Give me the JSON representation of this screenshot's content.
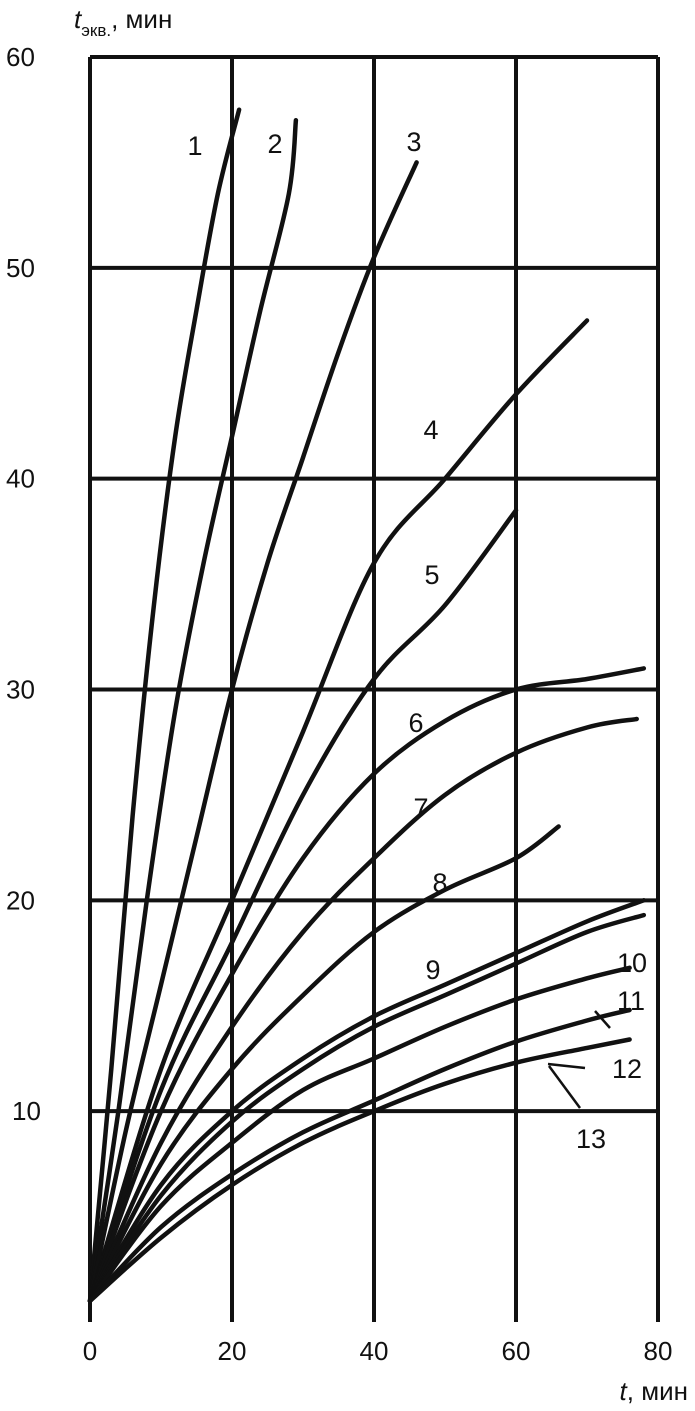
{
  "chart_data": {
    "type": "line",
    "title": "",
    "xlabel": {
      "symbol": "t",
      "unit": ", мин"
    },
    "ylabel": {
      "symbol": "t",
      "subscript": "экв.",
      "unit": ", мин"
    },
    "xlim": [
      0,
      80
    ],
    "ylim": [
      0,
      60
    ],
    "x_ticks": [
      "0",
      "20",
      "40",
      "60",
      "80"
    ],
    "y_ticks": [
      "60",
      "50",
      "40",
      "30",
      "20",
      "10"
    ],
    "grid": true,
    "series": [
      {
        "name": "1",
        "points": [
          [
            0,
            1
          ],
          [
            3,
            12
          ],
          [
            6,
            24
          ],
          [
            9,
            34
          ],
          [
            12,
            42
          ],
          [
            15,
            48
          ],
          [
            18,
            53.5
          ],
          [
            21,
            57.5
          ]
        ]
      },
      {
        "name": "2",
        "points": [
          [
            0,
            1
          ],
          [
            4,
            10
          ],
          [
            8,
            20
          ],
          [
            12,
            29
          ],
          [
            16,
            36
          ],
          [
            20,
            42
          ],
          [
            24,
            48
          ],
          [
            28,
            53.5
          ],
          [
            29,
            57
          ]
        ]
      },
      {
        "name": "3",
        "points": [
          [
            0,
            1
          ],
          [
            5,
            9
          ],
          [
            10,
            16
          ],
          [
            15,
            23
          ],
          [
            20,
            30
          ],
          [
            25,
            36
          ],
          [
            30,
            41
          ],
          [
            35,
            46
          ],
          [
            40,
            50.5
          ],
          [
            46,
            55
          ]
        ]
      },
      {
        "name": "4",
        "points": [
          [
            0,
            1
          ],
          [
            10,
            12
          ],
          [
            20,
            20
          ],
          [
            30,
            28
          ],
          [
            40,
            36
          ],
          [
            50,
            40
          ],
          [
            60,
            44
          ],
          [
            70,
            47.5
          ]
        ]
      },
      {
        "name": "5",
        "points": [
          [
            0,
            1
          ],
          [
            10,
            11
          ],
          [
            20,
            18
          ],
          [
            30,
            25
          ],
          [
            40,
            30.5
          ],
          [
            50,
            34
          ],
          [
            60,
            38.5
          ]
        ]
      },
      {
        "name": "6",
        "points": [
          [
            0,
            1
          ],
          [
            10,
            10
          ],
          [
            20,
            16.5
          ],
          [
            30,
            22
          ],
          [
            40,
            26
          ],
          [
            50,
            28.5
          ],
          [
            60,
            30
          ],
          [
            70,
            30.5
          ],
          [
            78,
            31
          ]
        ]
      },
      {
        "name": "7",
        "points": [
          [
            0,
            1
          ],
          [
            10,
            8.5
          ],
          [
            20,
            14
          ],
          [
            30,
            18.5
          ],
          [
            40,
            22
          ],
          [
            50,
            25
          ],
          [
            60,
            27
          ],
          [
            70,
            28.2
          ],
          [
            77,
            28.6
          ]
        ]
      },
      {
        "name": "8",
        "points": [
          [
            0,
            1
          ],
          [
            10,
            7.5
          ],
          [
            20,
            12
          ],
          [
            30,
            15.5
          ],
          [
            40,
            18.5
          ],
          [
            50,
            20.5
          ],
          [
            60,
            22
          ],
          [
            66,
            23.5
          ]
        ]
      },
      {
        "name": "9",
        "points": [
          [
            0,
            1
          ],
          [
            10,
            6.5
          ],
          [
            20,
            10
          ],
          [
            30,
            12.5
          ],
          [
            40,
            14.5
          ],
          [
            50,
            16
          ],
          [
            60,
            17.5
          ],
          [
            70,
            19
          ],
          [
            78,
            20
          ]
        ]
      },
      {
        "name": "10",
        "points": [
          [
            0,
            1
          ],
          [
            10,
            6
          ],
          [
            20,
            9.5
          ],
          [
            30,
            12
          ],
          [
            40,
            14
          ],
          [
            50,
            15.5
          ],
          [
            60,
            17
          ],
          [
            70,
            18.5
          ],
          [
            78,
            19.3
          ]
        ]
      },
      {
        "name": "11",
        "points": [
          [
            0,
            1
          ],
          [
            10,
            5.5
          ],
          [
            20,
            8.5
          ],
          [
            30,
            11
          ],
          [
            40,
            12.5
          ],
          [
            50,
            14
          ],
          [
            60,
            15.3
          ],
          [
            70,
            16.3
          ],
          [
            76,
            16.8
          ]
        ]
      },
      {
        "name": "12",
        "points": [
          [
            0,
            1
          ],
          [
            10,
            4.5
          ],
          [
            20,
            7
          ],
          [
            30,
            9
          ],
          [
            40,
            10.5
          ],
          [
            50,
            12
          ],
          [
            60,
            13.3
          ],
          [
            70,
            14.3
          ],
          [
            76,
            14.8
          ]
        ]
      },
      {
        "name": "13",
        "points": [
          [
            0,
            1
          ],
          [
            10,
            4
          ],
          [
            20,
            6.5
          ],
          [
            30,
            8.5
          ],
          [
            40,
            10
          ],
          [
            50,
            11.3
          ],
          [
            60,
            12.3
          ],
          [
            70,
            13
          ],
          [
            76,
            13.4
          ]
        ]
      }
    ]
  }
}
